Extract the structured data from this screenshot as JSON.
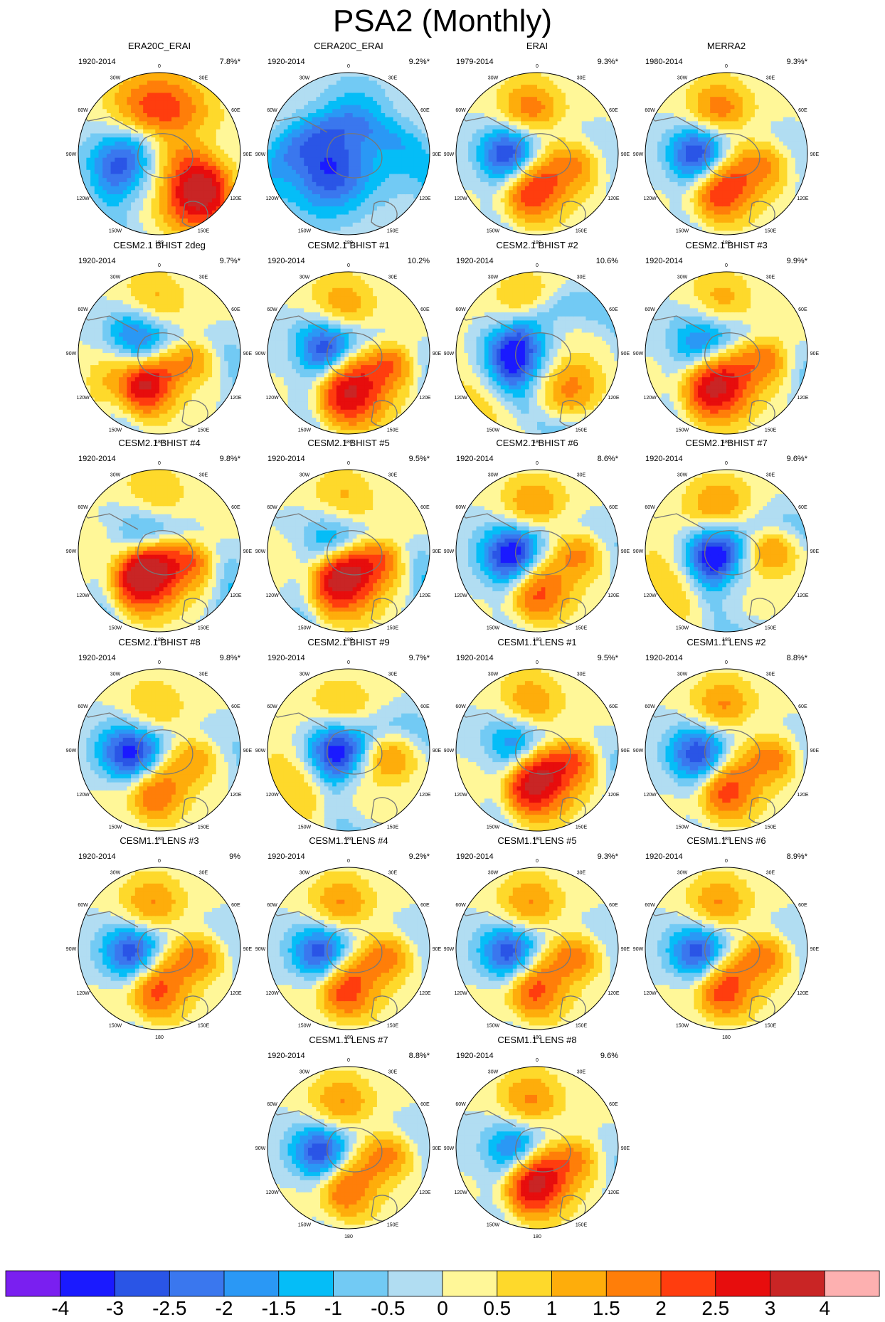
{
  "chart_data": {
    "type": "contour_map_panels",
    "title": "PSA2 (Monthly)",
    "projection": "south polar stereographic",
    "longitude_labels": [
      "0",
      "30E",
      "60E",
      "90E",
      "120E",
      "150E",
      "180",
      "150W",
      "120W",
      "90W",
      "60W",
      "30W"
    ],
    "colorbar": {
      "labels": [
        "-4",
        "-3",
        "-2.5",
        "-2",
        "-1.5",
        "-1",
        "-0.5",
        "0",
        "0.5",
        "1",
        "1.5",
        "2",
        "2.5",
        "3",
        "4"
      ],
      "colors": [
        "#7a1ff0",
        "#1a1aff",
        "#2a55e6",
        "#3a77ee",
        "#2a98f5",
        "#05bdf7",
        "#72caf4",
        "#b1ddf2",
        "#fff798",
        "#fed92b",
        "#fead0b",
        "#ff7e09",
        "#ff3d0e",
        "#e70d0d",
        "#c92525",
        "#fdb0b0"
      ]
    },
    "panels": [
      {
        "name": "ERA20C_ERAI",
        "period": "1920-2014",
        "variance": "7.8%*",
        "pattern": {
          "neg": [
            -0.45,
            0.08,
            -2.5,
            55
          ],
          "pos": [
            0.5,
            0.48,
            3.5,
            60
          ],
          "m1": [
            0.12,
            -0.48,
            2.0,
            65
          ],
          "m2": [
            -0.3,
            -0.55,
            1.0,
            60
          ],
          "ring": [
            0.2,
            0.55,
            -0.6,
            80
          ]
        }
      },
      {
        "name": "CERA20C_ERAI",
        "period": "1920-2014",
        "variance": "9.2%*",
        "pattern": {
          "neg": [
            -0.3,
            0.2,
            -3.3,
            65
          ],
          "pos": [
            -0.5,
            0.3,
            0.5,
            40
          ],
          "m1": [
            0.6,
            0.1,
            -0.7,
            60
          ],
          "m2": [
            0.1,
            -0.6,
            -1.0,
            50
          ],
          "ring": [
            0.0,
            0.75,
            -0.8,
            110
          ]
        }
      },
      {
        "name": "ERAI",
        "period": "1979-2014",
        "variance": "9.3%*",
        "pattern": {
          "neg": [
            -0.35,
            0.0,
            -3.5,
            45
          ],
          "pos": [
            -0.1,
            0.4,
            2.8,
            55
          ],
          "m1": [
            -0.1,
            -0.5,
            2.0,
            50
          ],
          "m2": [
            0.5,
            0.1,
            1.3,
            45
          ],
          "ring": [
            0.3,
            0.55,
            -0.7,
            80
          ]
        }
      },
      {
        "name": "MERRA2",
        "period": "1980-2014",
        "variance": "9.3%*",
        "pattern": {
          "neg": [
            -0.35,
            0.0,
            -3.5,
            45
          ],
          "pos": [
            -0.1,
            0.4,
            2.8,
            55
          ],
          "m1": [
            -0.1,
            -0.5,
            2.0,
            50
          ],
          "m2": [
            0.5,
            0.1,
            1.3,
            45
          ],
          "ring": [
            0.3,
            0.55,
            -0.7,
            80
          ]
        }
      },
      {
        "name": "CESM2.1 BHIST 2deg",
        "period": "1920-2014",
        "variance": "9.7%*",
        "pattern": {
          "neg": [
            -0.3,
            -0.2,
            -3.0,
            45
          ],
          "pos": [
            -0.25,
            0.32,
            3.7,
            55
          ],
          "m1": [
            -0.1,
            -0.6,
            1.4,
            50
          ],
          "m2": [
            0.45,
            0.0,
            1.5,
            40
          ],
          "ring": [
            0.3,
            0.6,
            -1.0,
            80
          ]
        }
      },
      {
        "name": "CESM2.1 BHIST #1",
        "period": "1920-2014",
        "variance": "10.2%",
        "pattern": {
          "neg": [
            -0.3,
            -0.1,
            -3.0,
            45
          ],
          "pos": [
            0.0,
            0.45,
            3.2,
            60
          ],
          "m1": [
            -0.1,
            -0.55,
            1.6,
            50
          ],
          "m2": [
            0.6,
            0.05,
            1.7,
            40
          ],
          "ring": [
            0.3,
            0.6,
            -1.0,
            80
          ]
        }
      },
      {
        "name": "CESM2.1 BHIST #2",
        "period": "1920-2014",
        "variance": "10.6%",
        "pattern": {
          "neg": [
            -0.3,
            0.05,
            -4.0,
            55
          ],
          "pos": [
            -0.5,
            0.3,
            1.4,
            80
          ],
          "m1": [
            -0.15,
            -0.6,
            1.2,
            50
          ],
          "m2": [
            0.4,
            0.4,
            1.6,
            50
          ],
          "ring": [
            0.5,
            0.2,
            -1.0,
            80
          ]
        }
      },
      {
        "name": "CESM2.1 BHIST #3",
        "period": "1920-2014",
        "variance": "9.9%*",
        "pattern": {
          "neg": [
            -0.3,
            -0.15,
            -2.5,
            50
          ],
          "pos": [
            -0.15,
            0.35,
            3.6,
            60
          ],
          "m1": [
            -0.1,
            -0.6,
            1.5,
            50
          ],
          "m2": [
            0.55,
            0.0,
            1.8,
            40
          ],
          "ring": [
            0.2,
            0.6,
            -0.9,
            85
          ]
        }
      },
      {
        "name": "CESM2.1 BHIST #4",
        "period": "1920-2014",
        "variance": "9.8%*",
        "pattern": {
          "neg": [
            -0.25,
            -0.3,
            -1.8,
            45
          ],
          "pos": [
            -0.2,
            0.25,
            4.0,
            60
          ],
          "m1": [
            -0.1,
            -0.65,
            1.3,
            50
          ],
          "m2": [
            0.5,
            0.05,
            1.7,
            40
          ],
          "ring": [
            0.1,
            0.55,
            -1.2,
            80
          ]
        }
      },
      {
        "name": "CESM2.1 BHIST #5",
        "period": "1920-2014",
        "variance": "9.5%*",
        "pattern": {
          "neg": [
            -0.25,
            -0.2,
            -2.0,
            45
          ],
          "pos": [
            -0.1,
            0.3,
            3.7,
            60
          ],
          "m1": [
            -0.1,
            -0.6,
            1.3,
            50
          ],
          "m2": [
            0.5,
            0.0,
            1.6,
            40
          ],
          "ring": [
            0.2,
            0.6,
            -1.2,
            80
          ]
        }
      },
      {
        "name": "CESM2.1 BHIST #6",
        "period": "1920-2014",
        "variance": "8.6%*",
        "pattern": {
          "neg": [
            -0.3,
            0.05,
            -3.8,
            48
          ],
          "pos": [
            -0.05,
            0.45,
            2.7,
            55
          ],
          "m1": [
            -0.05,
            -0.5,
            1.8,
            50
          ],
          "m2": [
            0.55,
            0.0,
            1.5,
            40
          ],
          "ring": [
            0.4,
            0.5,
            -0.8,
            80
          ]
        }
      },
      {
        "name": "CESM2.1 BHIST #7",
        "period": "1920-2014",
        "variance": "9.6%*",
        "pattern": {
          "neg": [
            -0.2,
            0.05,
            -4.0,
            48
          ],
          "pos": [
            -0.5,
            0.3,
            1.4,
            70
          ],
          "m1": [
            -0.1,
            -0.5,
            1.8,
            50
          ],
          "m2": [
            0.55,
            0.0,
            1.6,
            40
          ],
          "ring": [
            0.6,
            0.45,
            -0.9,
            80
          ]
        }
      },
      {
        "name": "CESM2.1 BHIST #8",
        "period": "1920-2014",
        "variance": "9.8%*",
        "pattern": {
          "neg": [
            -0.35,
            0.05,
            -4.0,
            48
          ],
          "pos": [
            -0.15,
            0.45,
            2.7,
            55
          ],
          "m1": [
            -0.1,
            -0.45,
            1.3,
            50
          ],
          "m2": [
            0.45,
            0.05,
            1.3,
            40
          ],
          "ring": [
            0.4,
            0.6,
            -0.7,
            80
          ]
        }
      },
      {
        "name": "CESM2.1 BHIST #9",
        "period": "1920-2014",
        "variance": "9.7%*",
        "pattern": {
          "neg": [
            -0.2,
            0.0,
            -4.0,
            48
          ],
          "pos": [
            -0.45,
            0.3,
            1.5,
            70
          ],
          "m1": [
            -0.1,
            -0.45,
            1.4,
            50
          ],
          "m2": [
            0.5,
            0.1,
            1.5,
            40
          ],
          "ring": [
            0.6,
            0.5,
            -0.9,
            80
          ]
        }
      },
      {
        "name": "CESM1.1 LENS #1",
        "period": "1920-2014",
        "variance": "9.5%*",
        "pattern": {
          "neg": [
            -0.3,
            -0.1,
            -2.5,
            45
          ],
          "pos": [
            -0.05,
            0.35,
            3.6,
            60
          ],
          "m1": [
            -0.1,
            -0.55,
            1.6,
            50
          ],
          "m2": [
            0.55,
            0.05,
            1.5,
            40
          ],
          "ring": [
            0.3,
            0.6,
            -1.0,
            80
          ]
        }
      },
      {
        "name": "CESM1.1 LENS #2",
        "period": "1920-2014",
        "variance": "8.8%*",
        "pattern": {
          "neg": [
            -0.35,
            0.05,
            -3.3,
            45
          ],
          "pos": [
            -0.05,
            0.45,
            2.6,
            55
          ],
          "m1": [
            -0.05,
            -0.5,
            1.7,
            50
          ],
          "m2": [
            0.6,
            0.05,
            1.7,
            40
          ],
          "ring": [
            0.4,
            0.55,
            -0.7,
            80
          ]
        }
      },
      {
        "name": "CESM1.1 LENS #3",
        "period": "1920-2014",
        "variance": "9%",
        "pattern": {
          "neg": [
            -0.35,
            0.05,
            -3.3,
            45
          ],
          "pos": [
            -0.1,
            0.45,
            2.6,
            55
          ],
          "m1": [
            -0.1,
            -0.5,
            1.7,
            50
          ],
          "m2": [
            0.5,
            0.05,
            1.6,
            40
          ],
          "ring": [
            0.4,
            0.55,
            -0.7,
            80
          ]
        }
      },
      {
        "name": "CESM1.1 LENS #4",
        "period": "1920-2014",
        "variance": "9.2%*",
        "pattern": {
          "neg": [
            -0.35,
            0.05,
            -3.3,
            45
          ],
          "pos": [
            -0.1,
            0.45,
            2.8,
            55
          ],
          "m1": [
            -0.1,
            -0.5,
            1.7,
            50
          ],
          "m2": [
            0.5,
            0.05,
            1.6,
            40
          ],
          "ring": [
            0.4,
            0.55,
            -0.7,
            80
          ]
        }
      },
      {
        "name": "CESM1.1 LENS #5",
        "period": "1920-2014",
        "variance": "9.3%*",
        "pattern": {
          "neg": [
            -0.35,
            0.05,
            -3.3,
            45
          ],
          "pos": [
            -0.1,
            0.45,
            2.6,
            55
          ],
          "m1": [
            -0.1,
            -0.5,
            1.7,
            50
          ],
          "m2": [
            0.5,
            0.05,
            1.6,
            40
          ],
          "ring": [
            0.4,
            0.55,
            -0.7,
            80
          ]
        }
      },
      {
        "name": "CESM1.1 LENS #6",
        "period": "1920-2014",
        "variance": "8.9%*",
        "pattern": {
          "neg": [
            -0.35,
            0.05,
            -3.3,
            45
          ],
          "pos": [
            -0.1,
            0.45,
            2.8,
            55
          ],
          "m1": [
            -0.1,
            -0.5,
            1.7,
            50
          ],
          "m2": [
            0.5,
            0.05,
            1.6,
            40
          ],
          "ring": [
            0.4,
            0.55,
            -0.7,
            80
          ]
        }
      },
      {
        "name": "CESM1.1 LENS #7",
        "period": "1920-2014",
        "variance": "8.8%*",
        "pattern": {
          "neg": [
            -0.35,
            0.05,
            -3.3,
            45
          ],
          "pos": [
            -0.1,
            0.45,
            2.4,
            55
          ],
          "m1": [
            -0.1,
            -0.5,
            1.7,
            50
          ],
          "m2": [
            0.5,
            0.05,
            1.6,
            40
          ],
          "ring": [
            0.4,
            0.55,
            -0.7,
            80
          ]
        }
      },
      {
        "name": "CESM1.1 LENS #8",
        "period": "1920-2014",
        "variance": "9.6%",
        "pattern": {
          "neg": [
            -0.3,
            0.0,
            -2.5,
            45
          ],
          "pos": [
            -0.05,
            0.4,
            3.6,
            55
          ],
          "m1": [
            -0.1,
            -0.55,
            1.7,
            50
          ],
          "m2": [
            0.55,
            0.05,
            1.4,
            40
          ],
          "ring": [
            0.3,
            0.6,
            -0.8,
            80
          ]
        }
      }
    ]
  }
}
